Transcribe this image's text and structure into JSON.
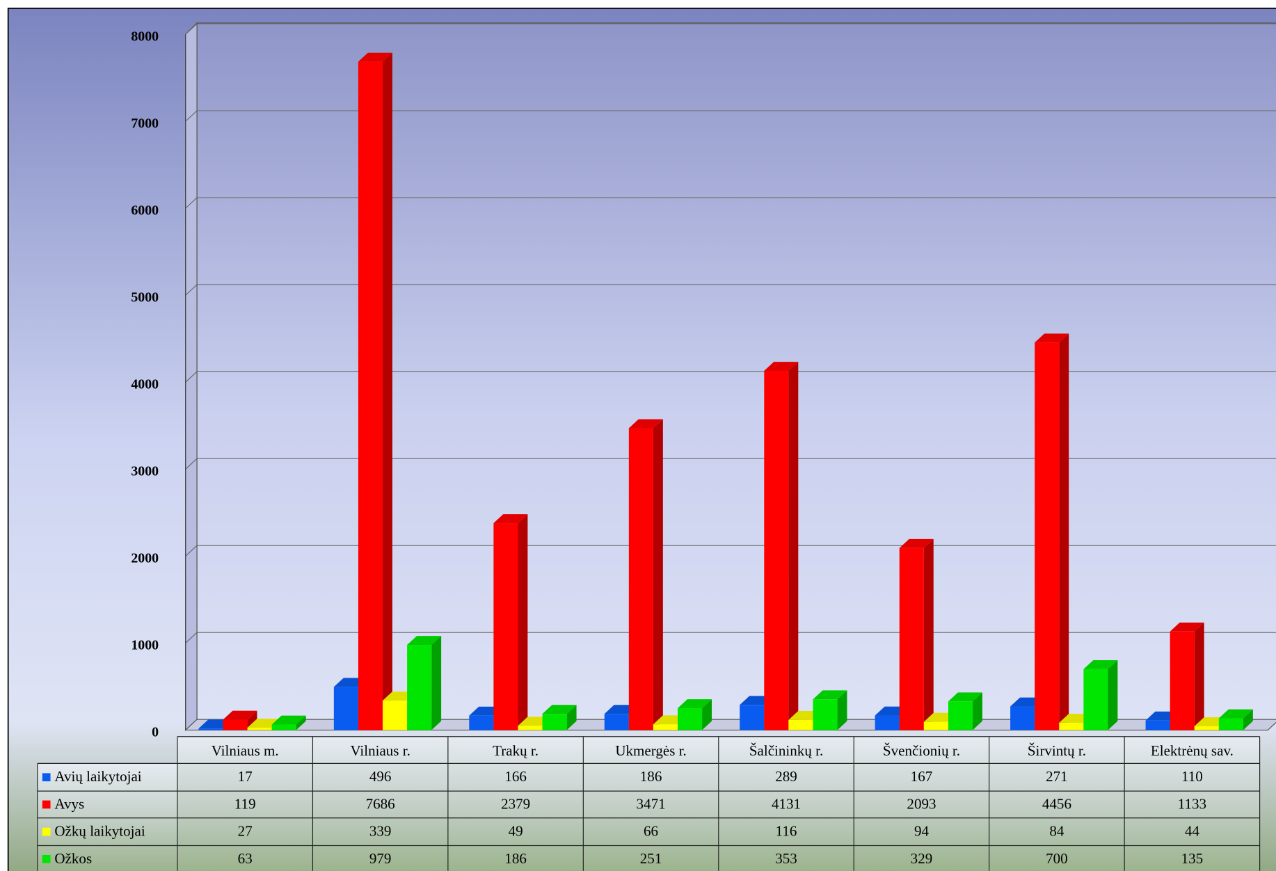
{
  "chart_data": {
    "type": "bar",
    "categories": [
      "Vilniaus m.",
      "Vilniaus r.",
      "Trakų r.",
      "Ukmergės r.",
      "Šalčininkų r.",
      "Švenčionių r.",
      "Širvintų r.",
      "Elektrėnų sav."
    ],
    "series": [
      {
        "name": "Avių laikytojai",
        "color": "#0a5cf0",
        "values": [
          17,
          496,
          166,
          186,
          289,
          167,
          271,
          110
        ]
      },
      {
        "name": "Avys",
        "color": "#ff0000",
        "values": [
          119,
          7686,
          2379,
          3471,
          4131,
          2093,
          4456,
          1133
        ]
      },
      {
        "name": "Ožkų laikytojai",
        "color": "#ffff00",
        "values": [
          27,
          339,
          49,
          66,
          116,
          94,
          84,
          44
        ]
      },
      {
        "name": "Ožkos",
        "color": "#00e600",
        "values": [
          63,
          979,
          186,
          251,
          353,
          329,
          700,
          135
        ]
      }
    ],
    "ylim": [
      0,
      8000
    ],
    "yticks": [
      0,
      1000,
      2000,
      3000,
      4000,
      5000,
      6000,
      7000,
      8000
    ],
    "grid": true
  }
}
